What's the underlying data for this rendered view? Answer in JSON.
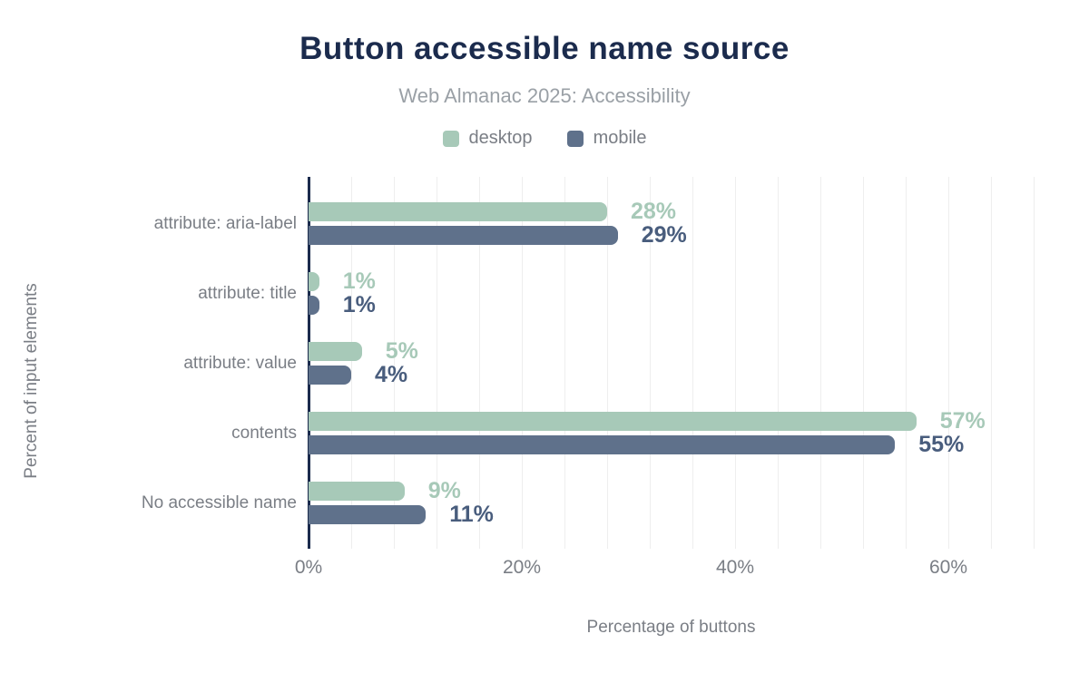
{
  "title": "Button accessible name source",
  "subtitle": "Web Almanac 2025: Accessibility",
  "colors": {
    "title_navy": "#1b2b4d",
    "axis_line": "#1b2b4d",
    "desktop_bar": "#a7c9b8",
    "mobile_bar": "#5f718b",
    "desktop_value_label": "#a7c9b8",
    "mobile_value_label": "#495d7d",
    "text_gray": "#7a7e85",
    "subtitle_gray": "#9aa0a6",
    "gridline": "#eeeeee"
  },
  "legend": [
    {
      "label": "desktop",
      "color": "#a7c9b8"
    },
    {
      "label": "mobile",
      "color": "#5f718b"
    }
  ],
  "chart_data": {
    "type": "bar",
    "orientation": "horizontal",
    "title": "Button accessible name source",
    "subtitle": "Web Almanac 2025: Accessibility",
    "categories": [
      "attribute: aria-label",
      "attribute: title",
      "attribute: value",
      "contents",
      "No accessible name"
    ],
    "series": [
      {
        "name": "desktop",
        "color": "#a7c9b8",
        "label_color": "#a7c9b8",
        "values": [
          28,
          1,
          5,
          57,
          9
        ]
      },
      {
        "name": "mobile",
        "color": "#5f718b",
        "label_color": "#495d7d",
        "values": [
          29,
          1,
          4,
          55,
          11
        ]
      }
    ],
    "value_suffix": "%",
    "xlabel": "Percentage of buttons",
    "ylabel": "Percent of input elements",
    "x_ticks": [
      "0%",
      "20%",
      "40%",
      "60%"
    ],
    "x_tick_values": [
      0,
      20,
      40,
      60
    ],
    "xlim": [
      0,
      68
    ],
    "grid_interval": 4,
    "grid": true,
    "legend_position": "top"
  }
}
